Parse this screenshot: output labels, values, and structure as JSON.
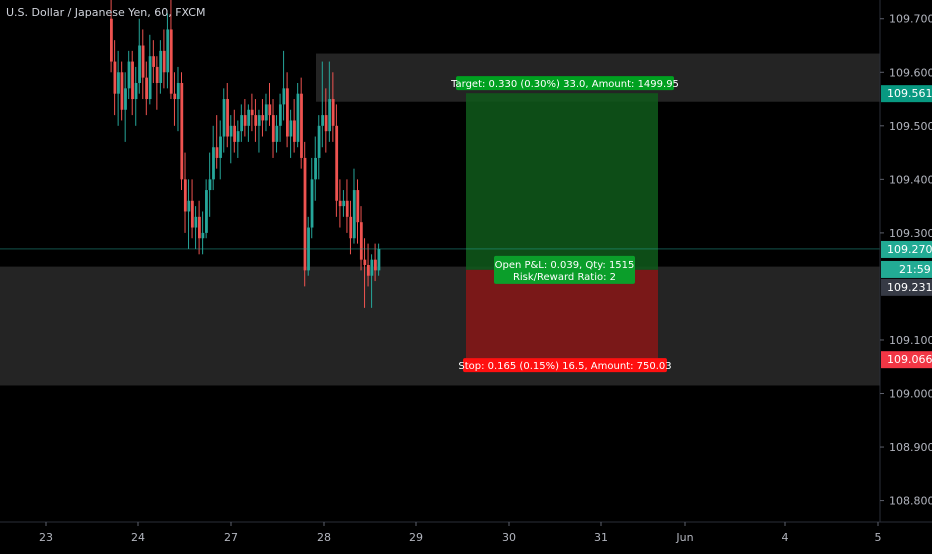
{
  "chart_data": {
    "type": "candlestick",
    "title": "U.S. Dollar / Japanese Yen, 60, FXCM",
    "ylim": [
      108.76,
      109.735
    ],
    "x_ticks": [
      "23",
      "24",
      "27",
      "28",
      "29",
      "30",
      "31",
      "Jun",
      "4",
      "5"
    ],
    "y_ticks": [
      "109.700",
      "109.600",
      "109.500",
      "109.400",
      "109.300",
      "109.100",
      "109.000",
      "108.900",
      "108.800"
    ],
    "zones": [
      {
        "name": "upper-zone",
        "from": 109.545,
        "to": 109.635,
        "color": "#2a2a2a"
      },
      {
        "name": "lower-zone",
        "from": 109.015,
        "to": 109.237,
        "color": "#2a2a2a"
      }
    ],
    "position": {
      "entry": 109.231,
      "target": 109.561,
      "stop": 109.066,
      "current": 109.27,
      "target_label": "Target: 0.330 (0.30%) 33.0, Amount: 1499.95",
      "stop_label": "Stop: 0.165 (0.15%) 16.5, Amount: 750.03",
      "pnl_label": "Open P&L: 0.039, Qty: 1515",
      "rr_label": "Risk/Reward Ratio: 2"
    },
    "price_badges": [
      {
        "value": "109.561",
        "color": "#089981"
      },
      {
        "value": "109.270",
        "color": "#22ab94"
      },
      {
        "value": "21:59",
        "color": "#22ab94"
      },
      {
        "value": "109.231",
        "color": "#363a45"
      },
      {
        "value": "109.066",
        "color": "#f23645"
      }
    ],
    "colors": {
      "up": "#26a69a",
      "down": "#ef5350",
      "profit": "#0f5a1b",
      "loss": "#8a1616",
      "target_badge": "#00a020",
      "stop_badge": "#ff1010"
    },
    "series": [
      {
        "o": 109.7,
        "h": 109.76,
        "l": 109.6,
        "c": 109.62
      },
      {
        "o": 109.62,
        "h": 109.66,
        "l": 109.52,
        "c": 109.56
      },
      {
        "o": 109.56,
        "h": 109.64,
        "l": 109.5,
        "c": 109.6
      },
      {
        "o": 109.6,
        "h": 109.62,
        "l": 109.51,
        "c": 109.53
      },
      {
        "o": 109.53,
        "h": 109.6,
        "l": 109.47,
        "c": 109.57
      },
      {
        "o": 109.57,
        "h": 109.64,
        "l": 109.55,
        "c": 109.62
      },
      {
        "o": 109.62,
        "h": 109.64,
        "l": 109.52,
        "c": 109.55
      },
      {
        "o": 109.55,
        "h": 109.61,
        "l": 109.5,
        "c": 109.58
      },
      {
        "o": 109.58,
        "h": 109.7,
        "l": 109.56,
        "c": 109.65
      },
      {
        "o": 109.65,
        "h": 109.68,
        "l": 109.55,
        "c": 109.59
      },
      {
        "o": 109.59,
        "h": 109.62,
        "l": 109.52,
        "c": 109.55
      },
      {
        "o": 109.55,
        "h": 109.67,
        "l": 109.54,
        "c": 109.63
      },
      {
        "o": 109.63,
        "h": 109.66,
        "l": 109.58,
        "c": 109.61
      },
      {
        "o": 109.61,
        "h": 109.63,
        "l": 109.53,
        "c": 109.58
      },
      {
        "o": 109.58,
        "h": 109.66,
        "l": 109.56,
        "c": 109.64
      },
      {
        "o": 109.64,
        "h": 109.68,
        "l": 109.57,
        "c": 109.6
      },
      {
        "o": 109.6,
        "h": 109.71,
        "l": 109.57,
        "c": 109.68
      },
      {
        "o": 109.68,
        "h": 109.79,
        "l": 109.55,
        "c": 109.56
      },
      {
        "o": 109.56,
        "h": 109.6,
        "l": 109.5,
        "c": 109.55
      },
      {
        "o": 109.55,
        "h": 109.61,
        "l": 109.49,
        "c": 109.58
      },
      {
        "o": 109.58,
        "h": 109.6,
        "l": 109.38,
        "c": 109.4
      },
      {
        "o": 109.4,
        "h": 109.45,
        "l": 109.3,
        "c": 109.34
      },
      {
        "o": 109.34,
        "h": 109.4,
        "l": 109.27,
        "c": 109.36
      },
      {
        "o": 109.36,
        "h": 109.4,
        "l": 109.29,
        "c": 109.31
      },
      {
        "o": 109.31,
        "h": 109.35,
        "l": 109.27,
        "c": 109.33
      },
      {
        "o": 109.33,
        "h": 109.36,
        "l": 109.26,
        "c": 109.29
      },
      {
        "o": 109.29,
        "h": 109.34,
        "l": 109.26,
        "c": 109.3
      },
      {
        "o": 109.3,
        "h": 109.4,
        "l": 109.29,
        "c": 109.38
      },
      {
        "o": 109.38,
        "h": 109.45,
        "l": 109.33,
        "c": 109.4
      },
      {
        "o": 109.4,
        "h": 109.5,
        "l": 109.38,
        "c": 109.46
      },
      {
        "o": 109.46,
        "h": 109.52,
        "l": 109.42,
        "c": 109.44
      },
      {
        "o": 109.44,
        "h": 109.51,
        "l": 109.4,
        "c": 109.48
      },
      {
        "o": 109.48,
        "h": 109.57,
        "l": 109.45,
        "c": 109.55
      },
      {
        "o": 109.55,
        "h": 109.58,
        "l": 109.46,
        "c": 109.48
      },
      {
        "o": 109.48,
        "h": 109.52,
        "l": 109.43,
        "c": 109.5
      },
      {
        "o": 109.5,
        "h": 109.53,
        "l": 109.45,
        "c": 109.47
      },
      {
        "o": 109.47,
        "h": 109.51,
        "l": 109.44,
        "c": 109.49
      },
      {
        "o": 109.49,
        "h": 109.54,
        "l": 109.47,
        "c": 109.52
      },
      {
        "o": 109.52,
        "h": 109.55,
        "l": 109.48,
        "c": 109.5
      },
      {
        "o": 109.5,
        "h": 109.54,
        "l": 109.47,
        "c": 109.53
      },
      {
        "o": 109.53,
        "h": 109.56,
        "l": 109.49,
        "c": 109.52
      },
      {
        "o": 109.52,
        "h": 109.55,
        "l": 109.47,
        "c": 109.5
      },
      {
        "o": 109.5,
        "h": 109.53,
        "l": 109.45,
        "c": 109.52
      },
      {
        "o": 109.52,
        "h": 109.55,
        "l": 109.48,
        "c": 109.51
      },
      {
        "o": 109.51,
        "h": 109.56,
        "l": 109.49,
        "c": 109.54
      },
      {
        "o": 109.54,
        "h": 109.58,
        "l": 109.5,
        "c": 109.52
      },
      {
        "o": 109.52,
        "h": 109.55,
        "l": 109.44,
        "c": 109.47
      },
      {
        "o": 109.47,
        "h": 109.52,
        "l": 109.45,
        "c": 109.5
      },
      {
        "o": 109.5,
        "h": 109.56,
        "l": 109.47,
        "c": 109.54
      },
      {
        "o": 109.54,
        "h": 109.64,
        "l": 109.51,
        "c": 109.57
      },
      {
        "o": 109.57,
        "h": 109.6,
        "l": 109.46,
        "c": 109.48
      },
      {
        "o": 109.48,
        "h": 109.53,
        "l": 109.44,
        "c": 109.51
      },
      {
        "o": 109.51,
        "h": 109.55,
        "l": 109.45,
        "c": 109.47
      },
      {
        "o": 109.47,
        "h": 109.58,
        "l": 109.46,
        "c": 109.56
      },
      {
        "o": 109.56,
        "h": 109.59,
        "l": 109.42,
        "c": 109.44
      },
      {
        "o": 109.44,
        "h": 109.47,
        "l": 109.2,
        "c": 109.23
      },
      {
        "o": 109.23,
        "h": 109.33,
        "l": 109.22,
        "c": 109.31
      },
      {
        "o": 109.31,
        "h": 109.44,
        "l": 109.29,
        "c": 109.4
      },
      {
        "o": 109.4,
        "h": 109.48,
        "l": 109.36,
        "c": 109.44
      },
      {
        "o": 109.44,
        "h": 109.52,
        "l": 109.4,
        "c": 109.5
      },
      {
        "o": 109.5,
        "h": 109.62,
        "l": 109.46,
        "c": 109.52
      },
      {
        "o": 109.52,
        "h": 109.57,
        "l": 109.45,
        "c": 109.49
      },
      {
        "o": 109.49,
        "h": 109.62,
        "l": 109.47,
        "c": 109.55
      },
      {
        "o": 109.55,
        "h": 109.6,
        "l": 109.47,
        "c": 109.5
      },
      {
        "o": 109.5,
        "h": 109.54,
        "l": 109.33,
        "c": 109.36
      },
      {
        "o": 109.36,
        "h": 109.4,
        "l": 109.31,
        "c": 109.35
      },
      {
        "o": 109.35,
        "h": 109.38,
        "l": 109.33,
        "c": 109.36
      },
      {
        "o": 109.36,
        "h": 109.4,
        "l": 109.3,
        "c": 109.33
      },
      {
        "o": 109.33,
        "h": 109.36,
        "l": 109.26,
        "c": 109.29
      },
      {
        "o": 109.29,
        "h": 109.42,
        "l": 109.28,
        "c": 109.38
      },
      {
        "o": 109.38,
        "h": 109.4,
        "l": 109.28,
        "c": 109.32
      },
      {
        "o": 109.32,
        "h": 109.35,
        "l": 109.23,
        "c": 109.25
      },
      {
        "o": 109.25,
        "h": 109.29,
        "l": 109.16,
        "c": 109.24
      },
      {
        "o": 109.24,
        "h": 109.28,
        "l": 109.2,
        "c": 109.22
      },
      {
        "o": 109.22,
        "h": 109.26,
        "l": 109.16,
        "c": 109.25
      },
      {
        "o": 109.25,
        "h": 109.28,
        "l": 109.21,
        "c": 109.23
      },
      {
        "o": 109.23,
        "h": 109.28,
        "l": 109.22,
        "c": 109.27
      }
    ]
  }
}
